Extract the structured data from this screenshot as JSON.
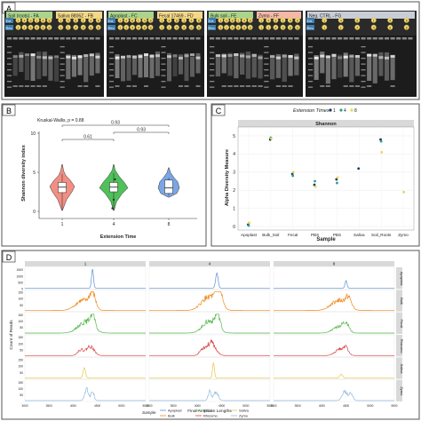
{
  "panels": {
    "A": {
      "letter": "A"
    },
    "B": {
      "letter": "B"
    },
    "C": {
      "letter": "C"
    },
    "D": {
      "letter": "D"
    }
  },
  "gel": {
    "groups": [
      {
        "label": "Soil (roots) - FA",
        "color": "#a9d48c"
      },
      {
        "label": "Saliva 8806Z - FB",
        "color": "#f4d88a"
      },
      {
        "label": "Apoplast - FC",
        "color": "#a9d48c"
      },
      {
        "label": "Fecal 17469 - FD",
        "color": "#f4d88a"
      },
      {
        "label": "Bulk soil - FE",
        "color": "#a9d48c"
      },
      {
        "label": "Zymo - FF",
        "color": "#f4b7a8"
      },
      {
        "label": "Neg. CTRL - FG",
        "color": "#c9ced6"
      }
    ],
    "ext_label": "Ext.",
    "rev_label": "Rev.",
    "numbers": [
      "1",
      "4",
      "8"
    ]
  },
  "chart_data": [
    {
      "type": "violin",
      "panel": "B",
      "annotation": "Kruskal-Wallis, p = 0.88",
      "xlabel": "Extension Time",
      "ylabel": "Shannon diversity index",
      "categories": [
        "1",
        "4",
        "8"
      ],
      "ylim": [
        0,
        10
      ],
      "yticks": [
        0,
        5,
        10
      ],
      "colors": [
        "#f28e83",
        "#4fc05a",
        "#7aa6e6"
      ],
      "box": [
        {
          "min": 0.1,
          "q1": 2.4,
          "median": 3.1,
          "q3": 3.7,
          "max": 4.8
        },
        {
          "min": 0.1,
          "q1": 2.5,
          "median": 3.1,
          "q3": 3.7,
          "max": 4.9
        },
        {
          "min": 2.0,
          "q1": 2.3,
          "median": 3.0,
          "q3": 4.0,
          "max": 4.3
        }
      ],
      "outliers": [
        {
          "group": "4",
          "y": 0.4
        },
        {
          "group": "4",
          "y": 1.5
        },
        {
          "group": "4",
          "y": 4.1
        }
      ],
      "comparisons": [
        {
          "from": "1",
          "to": "4",
          "label": "0.61"
        },
        {
          "from": "4",
          "to": "8",
          "label": "0.93"
        },
        {
          "from": "1",
          "to": "8",
          "label": "0.93"
        }
      ]
    },
    {
      "type": "scatter",
      "panel": "C",
      "legend_title": "Extension Times",
      "legend_position": "top",
      "facet_label": "Shannon",
      "xlabel": "Sample",
      "ylabel": "Alpha Diversity Measure",
      "categories": [
        "Apoplast",
        "Bulk_Soil",
        "Fecal",
        "PBS",
        "PBS",
        "Saliva",
        "Soil_Roots",
        "Zymo"
      ],
      "ylim": [
        0,
        5
      ],
      "yticks": [
        0,
        1,
        2,
        3,
        4,
        5
      ],
      "series": [
        {
          "name": "1",
          "color": "#1a3a6b",
          "points": [
            [
              "Apoplast",
              0.1
            ],
            [
              "Bulk_Soil",
              4.8
            ],
            [
              "Fecal",
              2.9
            ],
            [
              "PBS",
              2.3
            ],
            [
              "PBS",
              2.6
            ],
            [
              "Saliva",
              3.2
            ],
            [
              "Soil_Roots",
              4.8
            ]
          ]
        },
        {
          "name": "4",
          "color": "#2e9e8f",
          "points": [
            [
              "Apoplast",
              0.05
            ],
            [
              "Bulk_Soil",
              4.9
            ],
            [
              "Fecal",
              2.8
            ],
            [
              "PBS",
              2.5
            ],
            [
              "PBS",
              2.4
            ],
            [
              "Soil_Roots",
              4.7
            ]
          ]
        },
        {
          "name": "8",
          "color": "#e8d84a",
          "points": [
            [
              "Apoplast",
              0.2
            ],
            [
              "Bulk_Soil",
              4.85
            ],
            [
              "Fecal",
              3.0
            ],
            [
              "PBS",
              2.2
            ],
            [
              "PBS",
              2.7
            ],
            [
              "Soil_Roots",
              4.1
            ],
            [
              "Zymo",
              1.9
            ]
          ]
        }
      ]
    },
    {
      "type": "line",
      "panel": "D",
      "xlabel": "Final Amplicon Lengths",
      "ylabel": "Count of Reads",
      "legend_title": "Sample",
      "column_facets": [
        "1",
        "4",
        "8"
      ],
      "row_facets": [
        "Apoplast",
        "Bulk",
        "Fecal",
        "Rhizomo",
        "Saliva",
        "Zymo"
      ],
      "row_colors": [
        "#5b8fd6",
        "#ef8a1e",
        "#58b84e",
        "#d94343",
        "#e8c640",
        "#8fb8e0"
      ],
      "xticks": [
        3000,
        3500,
        4000,
        4500,
        5000,
        5500
      ],
      "xlim": [
        3000,
        5500
      ],
      "yticks_top": [
        "0",
        "500",
        "1000",
        "1500"
      ],
      "yticks_other": [
        "0",
        "50",
        "100",
        "150"
      ],
      "legend_entries": [
        "Apoplast",
        "Bulk",
        "Fecal",
        "Rhizomo",
        "Saliva",
        "Zymo"
      ],
      "peaks": [
        [
          [
            {
              "c": 4400,
              "w": 20,
              "h": 1.0
            }
          ],
          [
            {
              "c": 4200,
              "w": 150,
              "h": 0.55
            },
            {
              "c": 4400,
              "w": 60,
              "h": 0.8
            }
          ],
          [
            {
              "c": 4250,
              "w": 150,
              "h": 0.6
            },
            {
              "c": 4400,
              "w": 50,
              "h": 0.7
            }
          ],
          [
            {
              "c": 4350,
              "w": 80,
              "h": 0.5
            },
            {
              "c": 4150,
              "w": 60,
              "h": 0.3
            }
          ],
          [
            {
              "c": 4230,
              "w": 25,
              "h": 0.55
            }
          ],
          [
            {
              "c": 4280,
              "w": 40,
              "h": 0.6
            },
            {
              "c": 4400,
              "w": 30,
              "h": 0.5
            }
          ]
        ],
        [
          [
            {
              "c": 4400,
              "w": 25,
              "h": 0.8
            }
          ],
          [
            {
              "c": 4250,
              "w": 160,
              "h": 0.75
            },
            {
              "c": 4450,
              "w": 60,
              "h": 0.9
            }
          ],
          [
            {
              "c": 4250,
              "w": 140,
              "h": 0.65
            },
            {
              "c": 4420,
              "w": 50,
              "h": 0.8
            }
          ],
          [
            {
              "c": 4280,
              "w": 90,
              "h": 0.7
            },
            {
              "c": 4100,
              "w": 60,
              "h": 0.3
            }
          ],
          [
            {
              "c": 4330,
              "w": 20,
              "h": 0.8
            }
          ],
          [
            {
              "c": 4380,
              "w": 45,
              "h": 0.5
            },
            {
              "c": 4250,
              "w": 30,
              "h": 0.5
            }
          ]
        ],
        [
          [
            {
              "c": 4500,
              "w": 20,
              "h": 0.4
            }
          ],
          [
            {
              "c": 4350,
              "w": 160,
              "h": 0.55
            },
            {
              "c": 4550,
              "w": 60,
              "h": 0.5
            }
          ],
          [
            {
              "c": 4350,
              "w": 120,
              "h": 0.35
            },
            {
              "c": 4500,
              "w": 60,
              "h": 0.45
            }
          ],
          [
            {
              "c": 4380,
              "w": 100,
              "h": 0.35
            },
            {
              "c": 4500,
              "w": 50,
              "h": 0.3
            }
          ],
          [
            {
              "c": 4400,
              "w": 30,
              "h": 0.2
            }
          ],
          [
            {
              "c": 4470,
              "w": 50,
              "h": 0.5
            },
            {
              "c": 4600,
              "w": 40,
              "h": 0.4
            }
          ]
        ]
      ]
    }
  ]
}
